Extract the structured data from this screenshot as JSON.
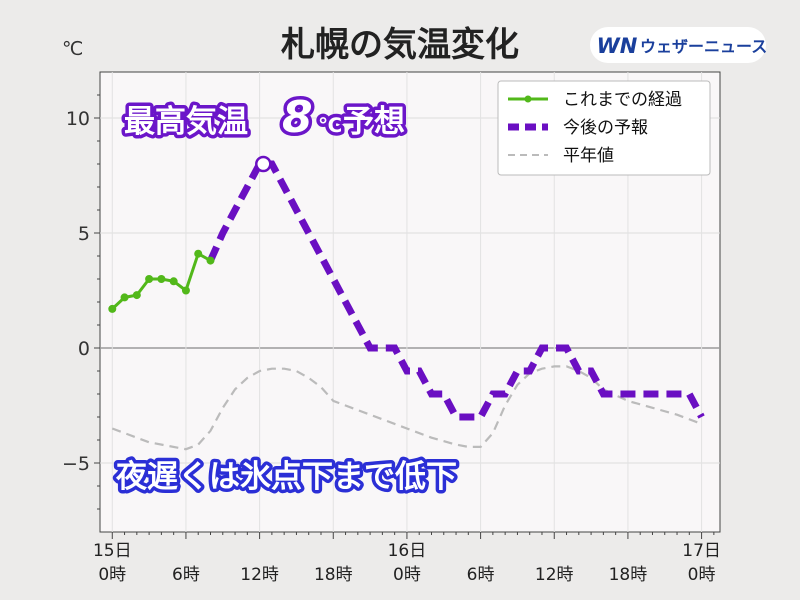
{
  "header": {
    "title": "札幌の気温変化",
    "unit": "℃",
    "brand": {
      "mark": "WN",
      "name": "ウェザーニュース"
    }
  },
  "callouts": {
    "max_prefix": "最高気温",
    "max_value": "8",
    "max_unit": "℃",
    "max_suffix": "予想",
    "night_note": "夜遅くは氷点下まで低下"
  },
  "colors": {
    "observed": "#52b81a",
    "forecast": "#6a0fc2",
    "normal": "#bbbbbb",
    "headline_text": "#ffffff",
    "headline_outline": "#6b16c9",
    "brand": "#1a3f9c"
  },
  "chart_data": {
    "type": "line",
    "title": "札幌の気温変化",
    "ylabel": "℃",
    "ylim": [
      -8,
      12
    ],
    "xlim": [
      -1,
      49.5
    ],
    "yticks": [
      10,
      5,
      0,
      -5
    ],
    "ytick_labels": [
      "10",
      "5",
      "0",
      "−5"
    ],
    "xticks": [
      {
        "x": 0,
        "lines": [
          "15日",
          "0時"
        ]
      },
      {
        "x": 6,
        "lines": [
          "",
          "6時"
        ]
      },
      {
        "x": 12,
        "lines": [
          "",
          "12時"
        ]
      },
      {
        "x": 18,
        "lines": [
          "",
          "18時"
        ]
      },
      {
        "x": 24,
        "lines": [
          "16日",
          "0時"
        ]
      },
      {
        "x": 30,
        "lines": [
          "",
          "6時"
        ]
      },
      {
        "x": 36,
        "lines": [
          "",
          "12時"
        ]
      },
      {
        "x": 42,
        "lines": [
          "",
          "18時"
        ]
      },
      {
        "x": 48,
        "lines": [
          "17日",
          "0時"
        ]
      }
    ],
    "grid": true,
    "legend": "top-right",
    "series": [
      {
        "name": "これまでの経過",
        "style": "solid-markers",
        "x": [
          0,
          1,
          2,
          3,
          4,
          5,
          6,
          7,
          8
        ],
        "y": [
          1.7,
          2.2,
          2.3,
          3.0,
          3.0,
          2.9,
          2.5,
          4.1,
          3.8
        ]
      },
      {
        "name": "今後の予報",
        "style": "dashed-step",
        "x": [
          8,
          9,
          10,
          11,
          12,
          13,
          14,
          15,
          16,
          17,
          18,
          19,
          20,
          21,
          22,
          23,
          24,
          25,
          26,
          27,
          28,
          29,
          30,
          31,
          32,
          33,
          34,
          35,
          36,
          37,
          38,
          39,
          40,
          41,
          42,
          43,
          44,
          45,
          46,
          47,
          48
        ],
        "y": [
          3.8,
          5,
          6,
          7,
          8,
          8,
          7,
          6,
          5,
          4,
          3,
          2,
          1,
          0,
          0,
          0,
          -1,
          -1,
          -2,
          -2,
          -3,
          -3,
          -3,
          -2,
          -2,
          -1,
          -1,
          0,
          0,
          0,
          -1,
          -1,
          -2,
          -2,
          -2,
          -2,
          -2,
          -2,
          -2,
          -2,
          -3
        ]
      },
      {
        "name": "平年値",
        "style": "dashed-thin",
        "x": [
          0,
          3,
          6,
          7,
          8,
          9,
          10,
          11,
          12,
          13,
          14,
          15,
          16,
          17,
          18,
          19,
          20,
          22,
          24,
          26,
          28,
          29,
          30,
          31,
          32,
          33,
          34,
          35,
          36,
          37,
          38,
          39,
          40,
          42,
          44,
          46,
          48
        ],
        "y": [
          -3.5,
          -4.1,
          -4.4,
          -4.2,
          -3.6,
          -2.6,
          -1.8,
          -1.3,
          -1.0,
          -0.9,
          -0.9,
          -1.0,
          -1.3,
          -1.7,
          -2.3,
          -2.5,
          -2.7,
          -3.1,
          -3.5,
          -3.9,
          -4.2,
          -4.3,
          -4.3,
          -3.7,
          -2.5,
          -1.6,
          -1.1,
          -0.9,
          -0.8,
          -0.8,
          -1.0,
          -1.3,
          -1.8,
          -2.3,
          -2.6,
          -2.9,
          -3.3
        ]
      }
    ],
    "annotations": [
      {
        "type": "max-marker",
        "series": "今後の予報",
        "x": 12.3,
        "y": 8.0
      }
    ]
  }
}
